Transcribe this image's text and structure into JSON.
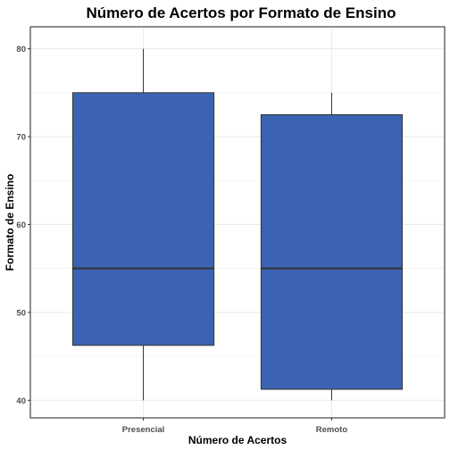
{
  "chart_data": {
    "type": "boxplot",
    "title": "Número de Acertos por Formato de Ensino",
    "xlabel": "Número de Acertos",
    "ylabel": "Formato de Ensino",
    "categories": [
      "Presencial",
      "Remoto"
    ],
    "boxes": [
      {
        "category": "Presencial",
        "min": 40,
        "q1": 46.25,
        "median": 55,
        "q3": 75,
        "max": 80
      },
      {
        "category": "Remoto",
        "min": 40,
        "q1": 41.25,
        "median": 55,
        "q3": 72.5,
        "max": 75
      }
    ],
    "y_ticks": [
      40,
      50,
      60,
      70,
      80
    ],
    "ylim": [
      38,
      82.5
    ],
    "grid": true,
    "colors": {
      "box_fill": "#3C63B2",
      "box_stroke": "#333333",
      "grid": "#EBEBEB",
      "panel_border": "#333333"
    }
  }
}
